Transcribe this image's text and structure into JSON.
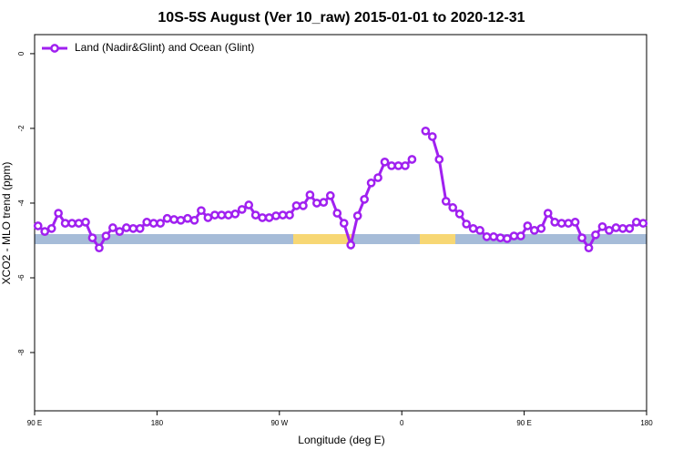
{
  "chart_data": {
    "type": "line",
    "title": "10S-5S August (Ver 10_raw)   2015-01-01 to 2020-12-31",
    "xlabel": "Longitude (deg E)",
    "ylabel": "XCO2 - MLO trend (ppm)",
    "xlim": [
      90,
      540
    ],
    "ylim": [
      -9.56,
      0.51
    ],
    "xticks": [
      {
        "value": 90,
        "label": "90 E"
      },
      180,
      {
        "value": 270,
        "label": "90 W"
      },
      {
        "value": 360,
        "label": "0"
      },
      {
        "value": 450,
        "label": "90 E"
      },
      {
        "value": 540,
        "label": "180"
      }
    ],
    "yticks": [
      0,
      -2,
      -4,
      -6,
      -8
    ],
    "legend": "top-left",
    "x": [
      92.5,
      97.5,
      102.5,
      107.5,
      112.5,
      117.5,
      122.5,
      127.5,
      132.5,
      137.5,
      142.5,
      147.5,
      152.5,
      157.5,
      162.5,
      167.5,
      172.5,
      177.5,
      182.5,
      187.5,
      192.5,
      197.5,
      202.5,
      207.5,
      212.5,
      217.5,
      222.5,
      227.5,
      232.5,
      237.5,
      242.5,
      247.5,
      252.5,
      257.5,
      262.5,
      267.5,
      272.5,
      277.5,
      282.5,
      287.5,
      292.5,
      297.5,
      302.5,
      307.5,
      312.5,
      317.5,
      322.5,
      327.5,
      332.5,
      337.5,
      342.5,
      347.5,
      352.5,
      357.5,
      362.5,
      367.5,
      372.5,
      377.5,
      382.5,
      387.5,
      392.5,
      397.5,
      402.5,
      407.5,
      412.5,
      417.5,
      422.5,
      427.5,
      432.5,
      437.5,
      442.5,
      447.5,
      452.5,
      457.5,
      462.5,
      467.5,
      472.5,
      477.5,
      482.5,
      487.5,
      492.5,
      497.5,
      502.5,
      507.5,
      512.5,
      517.5,
      522.5,
      527.5,
      532.5,
      537.5
    ],
    "series": [
      {
        "name": "Land (Nadir&Glint) and Ocean (Glint)",
        "color": "#a020f0",
        "values": [
          -4.61,
          -4.76,
          -4.68,
          -4.27,
          -4.54,
          -4.54,
          -4.54,
          -4.51,
          -4.93,
          -5.2,
          -4.88,
          -4.66,
          -4.76,
          -4.66,
          -4.68,
          -4.68,
          -4.51,
          -4.54,
          -4.54,
          -4.41,
          -4.44,
          -4.46,
          -4.41,
          -4.46,
          -4.2,
          -4.39,
          -4.32,
          -4.32,
          -4.32,
          -4.29,
          -4.17,
          -4.05,
          -4.32,
          -4.39,
          -4.39,
          -4.34,
          -4.32,
          -4.32,
          -4.07,
          -4.07,
          -3.78,
          -4.0,
          -3.98,
          -3.8,
          -4.27,
          -4.54,
          -5.12,
          -4.34,
          -3.9,
          -3.46,
          -3.32,
          -2.9,
          -3.0,
          -3.0,
          -3.0,
          -2.83,
          null,
          -2.07,
          -2.22,
          -2.83,
          -3.95,
          -4.12,
          -4.29,
          -4.56,
          -4.68,
          -4.73,
          -4.9,
          -4.9,
          -4.93,
          -4.95,
          -4.88,
          -4.88,
          -4.61,
          -4.73,
          -4.68,
          -4.27,
          -4.51,
          -4.54,
          -4.54,
          -4.51,
          -4.93,
          -5.2,
          -4.85,
          -4.63,
          -4.73,
          -4.66,
          -4.68,
          -4.68,
          -4.51,
          -4.54
        ]
      }
    ]
  }
}
